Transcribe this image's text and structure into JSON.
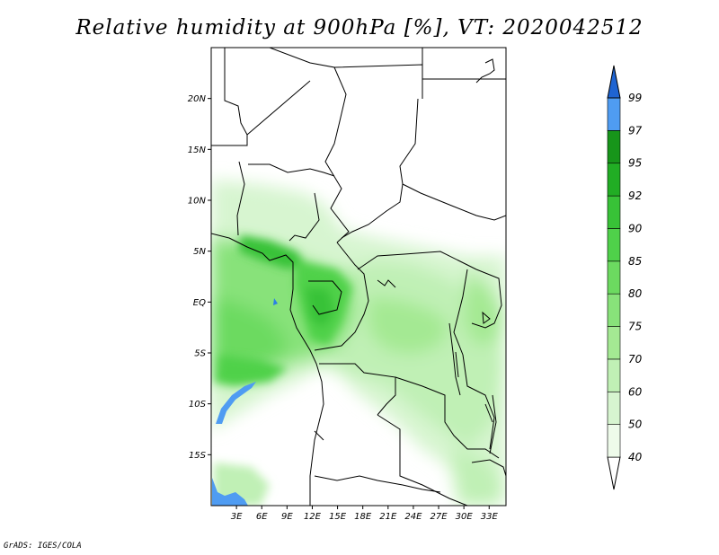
{
  "title": "Relative humidity at 900hPa [%], VT: 2020042512",
  "credit": "GrADS: IGES/COLA",
  "map": {
    "lon_range": [
      0,
      35
    ],
    "lat_range": [
      -20,
      25
    ],
    "lat_ticks": [
      {
        "value": 20,
        "label": "20N"
      },
      {
        "value": 15,
        "label": "15N"
      },
      {
        "value": 10,
        "label": "10N"
      },
      {
        "value": 5,
        "label": "5N"
      },
      {
        "value": 0,
        "label": "EQ"
      },
      {
        "value": -5,
        "label": "5S"
      },
      {
        "value": -10,
        "label": "10S"
      },
      {
        "value": -15,
        "label": "15S"
      }
    ],
    "lon_ticks": [
      {
        "value": 3,
        "label": "3E"
      },
      {
        "value": 6,
        "label": "6E"
      },
      {
        "value": 9,
        "label": "9E"
      },
      {
        "value": 12,
        "label": "12E"
      },
      {
        "value": 15,
        "label": "15E"
      },
      {
        "value": 18,
        "label": "18E"
      },
      {
        "value": 21,
        "label": "21E"
      },
      {
        "value": 24,
        "label": "24E"
      },
      {
        "value": 27,
        "label": "27E"
      },
      {
        "value": 30,
        "label": "30E"
      },
      {
        "value": 33,
        "label": "33E"
      }
    ]
  },
  "colorbar": {
    "levels": [
      {
        "label": "99"
      },
      {
        "label": "97"
      },
      {
        "label": "95"
      },
      {
        "label": "92"
      },
      {
        "label": "90"
      },
      {
        "label": "85"
      },
      {
        "label": "80"
      },
      {
        "label": "75"
      },
      {
        "label": "70"
      },
      {
        "label": "60"
      },
      {
        "label": "50"
      },
      {
        "label": "40"
      }
    ],
    "colors_bottom_to_top": [
      "#ffffff",
      "#eefbea",
      "#d7f5d0",
      "#c0f0b5",
      "#a4e993",
      "#88e27a",
      "#6cda60",
      "#4fd14a",
      "#38c237",
      "#21ad24",
      "#17951a",
      "#4f9cf2",
      "#2b7fe6",
      "#1f64d2"
    ]
  }
}
